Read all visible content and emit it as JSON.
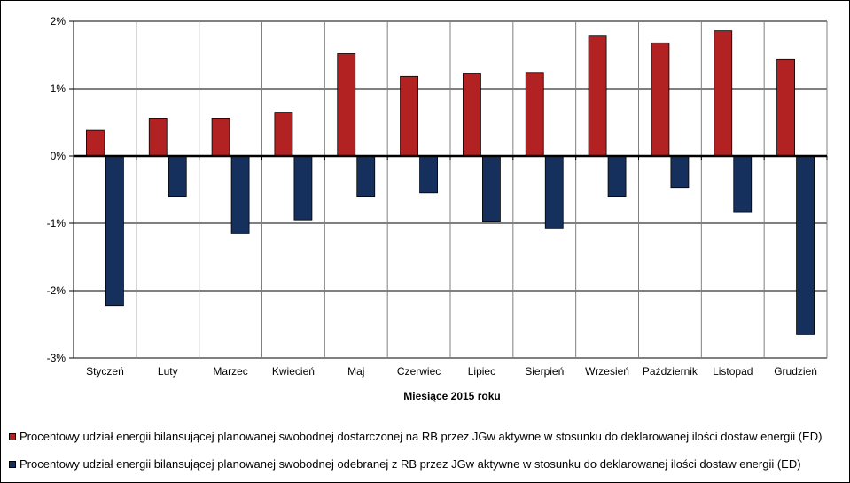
{
  "chart_data": {
    "type": "bar",
    "xlabel": "Miesiące 2015  roku",
    "ylabel": "",
    "ylim": [
      -3,
      2
    ],
    "yticks": [
      2,
      1,
      0,
      -1,
      -2,
      -3
    ],
    "ytick_labels": [
      "2%",
      "1%",
      "0%",
      "-1%",
      "-2%",
      "-3%"
    ],
    "grid": true,
    "legend_position": "bottom",
    "categories": [
      "Styczeń",
      "Luty",
      "Marzec",
      "Kwiecień",
      "Maj",
      "Czerwiec",
      "Lipiec",
      "Sierpień",
      "Wrzesień",
      "Październik",
      "Listopad",
      "Grudzień"
    ],
    "series": [
      {
        "name": "Procentowy udział energii bilansującej planowanej swobodnej dostarczonej na RB przez JGw aktywne w stosunku do deklarowanej ilości dostaw energii (ED)",
        "color": "#B22222",
        "values": [
          0.38,
          0.56,
          0.56,
          0.65,
          1.52,
          1.18,
          1.23,
          1.24,
          1.78,
          1.68,
          1.86,
          1.43
        ]
      },
      {
        "name": "Procentowy udział energii bilansującej planowanej swobodnej odebranej z RB przez JGw aktywne w stosunku do deklarowanej ilości dostaw energii (ED)",
        "color": "#16305E",
        "values": [
          -2.22,
          -0.6,
          -1.15,
          -0.95,
          -0.6,
          -0.55,
          -0.97,
          -1.07,
          -0.6,
          -0.47,
          -0.83,
          -2.65
        ]
      }
    ]
  }
}
